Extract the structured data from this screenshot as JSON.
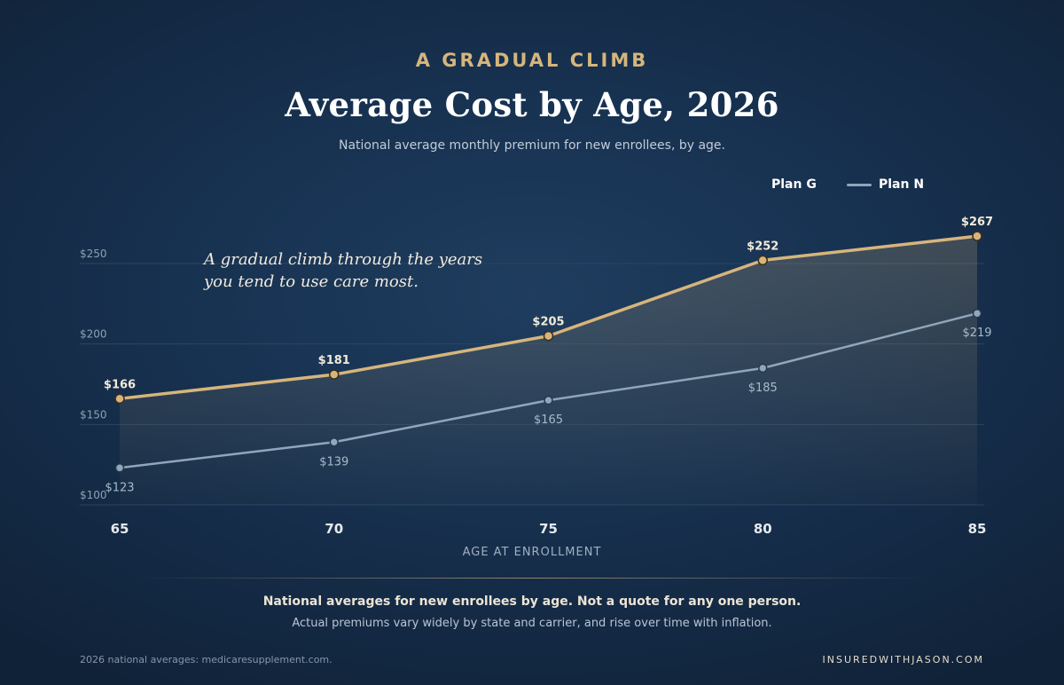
{
  "header": {
    "eyebrow": "A GRADUAL CLIMB",
    "title": "Average Cost by Age, 2026",
    "subtitle": "National average monthly premium for new enrollees, by age."
  },
  "legend": {
    "items": [
      {
        "label": "Plan G"
      },
      {
        "label": "Plan N"
      }
    ]
  },
  "annotation": {
    "line1": "A gradual climb through the years",
    "line2": "you tend to use care most."
  },
  "footer": {
    "note_main": "National averages for new enrollees by age. Not a quote for any one person.",
    "note_sub": "Actual premiums vary widely by state and carrier, and rise over time with inflation.",
    "source": "2026 national averages: medicaresupplement.com.",
    "brand": "INSUREDWITHJASON.COM"
  },
  "colors": {
    "plan_g": "#d6b57c",
    "plan_n": "#8fa6bb",
    "tick_text": "#8ea0b3",
    "grid": "#2c4560"
  },
  "chart_data": {
    "type": "line",
    "title": "Average Cost by Age, 2026",
    "subtitle": "National average monthly premium for new enrollees, by age.",
    "xlabel": "AGE AT ENROLLMENT",
    "ylabel": "",
    "x": [
      65,
      70,
      75,
      80,
      85
    ],
    "x_tick_labels": [
      "65",
      "70",
      "75",
      "80",
      "85"
    ],
    "ylim": [
      100,
      250
    ],
    "y_ticks": [
      100,
      150,
      200,
      250
    ],
    "y_tick_labels": [
      "$100",
      "$150",
      "$200",
      "$250"
    ],
    "grid": true,
    "legend_position": "top-right",
    "series": [
      {
        "name": "Plan G",
        "values": [
          166,
          181,
          205,
          252,
          267
        ],
        "data_labels": [
          "$166",
          "$181",
          "$205",
          "$252",
          "$267"
        ],
        "label_position": "above"
      },
      {
        "name": "Plan N",
        "values": [
          123,
          139,
          165,
          185,
          219
        ],
        "data_labels": [
          "$123",
          "$139",
          "$165",
          "$185",
          "$219"
        ],
        "label_position": "below"
      }
    ]
  }
}
